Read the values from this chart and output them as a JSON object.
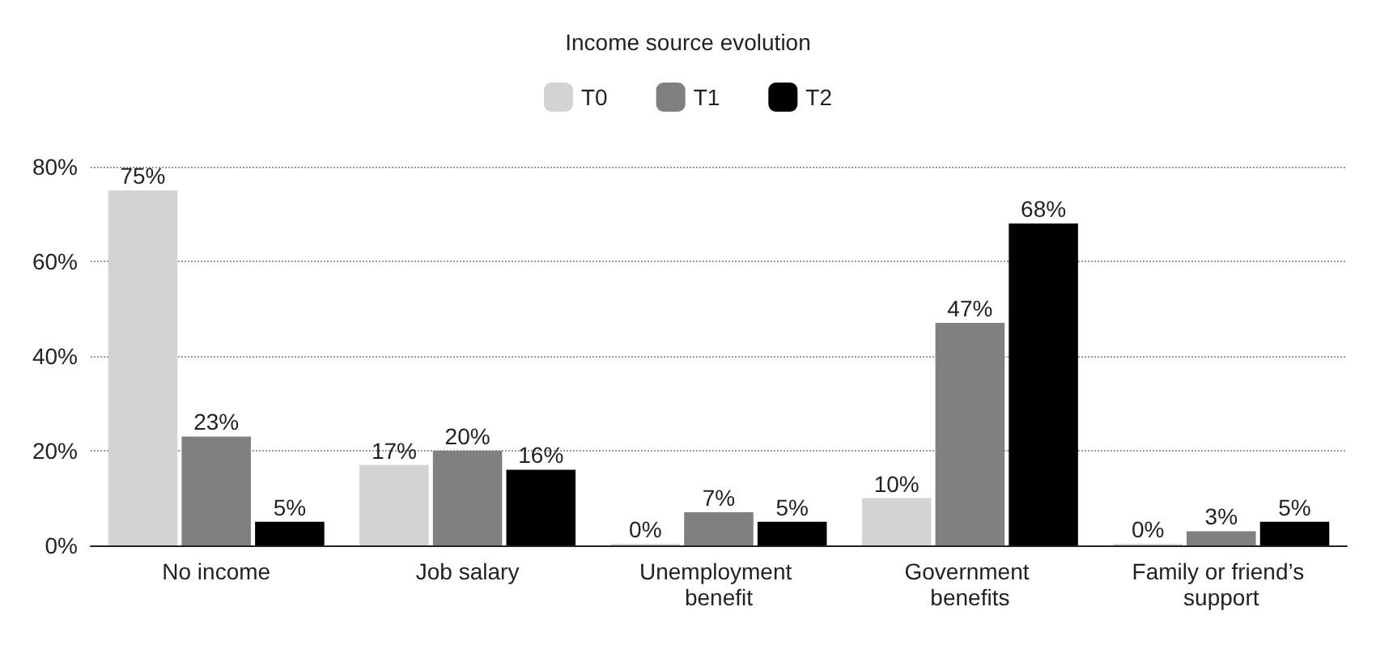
{
  "chart_data": {
    "type": "bar",
    "title": "Income source evolution",
    "categories": [
      "No income",
      "Job salary",
      "Unemployment benefit",
      "Government benefits",
      "Family or friend’s support"
    ],
    "series": [
      {
        "name": "T0",
        "color": "#d3d3d3",
        "values": [
          75,
          17,
          0,
          10,
          0
        ],
        "value_labels": [
          "75%",
          "17%",
          "0%",
          "10%",
          "0%"
        ]
      },
      {
        "name": "T1",
        "color": "#808080",
        "values": [
          23,
          20,
          7,
          47,
          3
        ],
        "value_labels": [
          "23%",
          "20%",
          "7%",
          "47%",
          "3%"
        ]
      },
      {
        "name": "T2",
        "color": "#000000",
        "values": [
          5,
          16,
          5,
          68,
          5
        ],
        "value_labels": [
          "5%",
          "16%",
          "5%",
          "68%",
          "5%"
        ]
      }
    ],
    "ylim": [
      0,
      80
    ],
    "yticks": [
      {
        "value": 0,
        "label": "0%"
      },
      {
        "value": 20,
        "label": "20%"
      },
      {
        "value": 40,
        "label": "40%"
      },
      {
        "value": 60,
        "label": "60%"
      },
      {
        "value": 80,
        "label": "80%"
      }
    ],
    "grid": "y",
    "legend": "top"
  }
}
